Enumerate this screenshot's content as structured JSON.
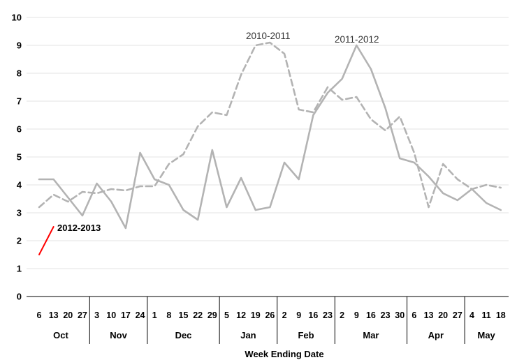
{
  "chart_data": {
    "type": "line",
    "title": "",
    "xlabel": "Week Ending Date",
    "ylabel": "",
    "ylim": [
      0,
      10
    ],
    "y_ticks": [
      0,
      1,
      2,
      3,
      4,
      5,
      6,
      7,
      8,
      9,
      10
    ],
    "grid": true,
    "x_ticks": [
      "6",
      "13",
      "20",
      "27",
      "3",
      "10",
      "17",
      "24",
      "1",
      "8",
      "15",
      "22",
      "29",
      "5",
      "12",
      "19",
      "26",
      "2",
      "9",
      "16",
      "23",
      "2",
      "9",
      "16",
      "23",
      "30",
      "6",
      "13",
      "20",
      "27",
      "4",
      "11",
      "18"
    ],
    "months": [
      {
        "label": "Oct",
        "weeks": 4
      },
      {
        "label": "Nov",
        "weeks": 4
      },
      {
        "label": "Dec",
        "weeks": 5
      },
      {
        "label": "Jan",
        "weeks": 4
      },
      {
        "label": "Feb",
        "weeks": 4
      },
      {
        "label": "Mar",
        "weeks": 5
      },
      {
        "label": "Apr",
        "weeks": 4
      },
      {
        "label": "May",
        "weeks": 3
      }
    ],
    "series": [
      {
        "name": "2010-2011",
        "style": "dashed",
        "color": "#b3b3b3",
        "values": [
          3.2,
          3.65,
          3.4,
          3.75,
          3.7,
          3.85,
          3.8,
          3.95,
          3.95,
          4.75,
          5.1,
          6.1,
          6.6,
          6.5,
          7.95,
          9.0,
          9.1,
          8.7,
          6.7,
          6.6,
          7.5,
          7.05,
          7.15,
          6.35,
          5.95,
          6.45,
          5.15,
          3.2,
          4.75,
          4.2,
          3.85,
          4.0,
          3.9
        ]
      },
      {
        "name": "2011-2012",
        "style": "solid",
        "color": "#b3b3b3",
        "values": [
          4.2,
          4.2,
          3.55,
          2.9,
          4.05,
          3.4,
          2.45,
          5.15,
          4.2,
          4.0,
          3.1,
          2.75,
          5.25,
          3.2,
          4.25,
          3.1,
          3.2,
          4.8,
          4.2,
          6.5,
          7.3,
          7.8,
          9.0,
          8.15,
          6.75,
          4.95,
          4.8,
          4.3,
          3.7,
          3.45,
          3.85,
          3.35,
          3.1
        ]
      },
      {
        "name": "2012-2013",
        "style": "solid",
        "color": "#ff0000",
        "values": [
          1.5,
          2.5
        ]
      }
    ]
  }
}
